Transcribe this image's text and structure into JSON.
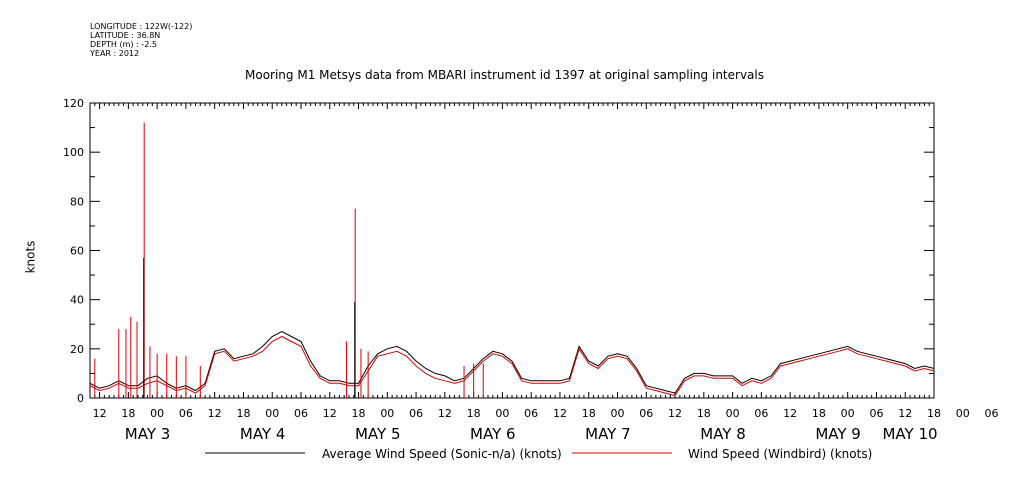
{
  "header": {
    "longitude": "LONGITUDE : 122W(-122)",
    "latitude": "LATITUDE : 36.8N",
    "depth": "DEPTH (m) : -2.5",
    "year": "YEAR : 2012"
  },
  "chart_data": {
    "type": "line",
    "title": "Mooring M1 Metsys data from MBARI instrument id 1397 at original sampling intervals",
    "ylabel": "knots",
    "xlabel": "",
    "ylim": [
      0,
      120
    ],
    "yticks": [
      0,
      20,
      40,
      60,
      80,
      100,
      120
    ],
    "xlim_hours": [
      10,
      186
    ],
    "hour_ticks": [
      "12",
      "18",
      "00",
      "06",
      "12",
      "18",
      "00",
      "06",
      "12",
      "18",
      "00",
      "06",
      "12",
      "18",
      "00",
      "06",
      "12",
      "18",
      "00",
      "06",
      "12",
      "18",
      "00",
      "06",
      "12",
      "18",
      "00",
      "06",
      "12",
      "18",
      "00",
      "06"
    ],
    "day_labels": [
      "MAY 3",
      "MAY 4",
      "MAY 5",
      "MAY 6",
      "MAY 7",
      "MAY 8",
      "MAY 9",
      "MAY 10"
    ],
    "grid": false,
    "legend_position": "bottom",
    "colors": {
      "average": "#000000",
      "windbird": "#dd0000"
    },
    "series": [
      {
        "name": "Average Wind Speed (Sonic-n/a) (knots)",
        "color": "#000000",
        "x": [
          10,
          12,
          14,
          16,
          18,
          20,
          22,
          24,
          26,
          28,
          30,
          32,
          34,
          36,
          38,
          40,
          42,
          44,
          46,
          48,
          50,
          52,
          54,
          56,
          58,
          60,
          62,
          64,
          66,
          68,
          70,
          72,
          74,
          76,
          78,
          80,
          82,
          84,
          86,
          88,
          90,
          92,
          94,
          96,
          98,
          100,
          102,
          104,
          106,
          108,
          110,
          112,
          114,
          116,
          118,
          120,
          122,
          124,
          126,
          128,
          130,
          132,
          134,
          136,
          138,
          140,
          142,
          144,
          146,
          148,
          150,
          152,
          154,
          156,
          158,
          160,
          162,
          164,
          166,
          168,
          170,
          172,
          174,
          176,
          178,
          180,
          182,
          184,
          186
        ],
        "y": [
          6,
          4,
          5,
          7,
          5,
          5,
          8,
          9,
          6,
          4,
          5,
          3,
          6,
          19,
          20,
          16,
          17,
          18,
          21,
          25,
          27,
          25,
          23,
          15,
          9,
          7,
          7,
          6,
          6,
          13,
          18,
          20,
          21,
          19,
          15,
          12,
          10,
          9,
          7,
          8,
          12,
          16,
          19,
          18,
          15,
          8,
          7,
          7,
          7,
          7,
          8,
          21,
          15,
          13,
          17,
          18,
          17,
          12,
          5,
          4,
          3,
          2,
          8,
          10,
          10,
          9,
          9,
          9,
          6,
          8,
          7,
          9,
          14,
          15,
          16,
          17,
          18,
          19,
          20,
          21,
          19,
          18,
          17,
          16,
          15,
          14,
          12,
          13,
          12
        ]
      },
      {
        "name": "Wind Speed (Windbird) (knots)",
        "color": "#dd0000",
        "x": [
          10,
          12,
          14,
          16,
          18,
          20,
          22,
          24,
          26,
          28,
          30,
          32,
          34,
          36,
          38,
          40,
          42,
          44,
          46,
          48,
          50,
          52,
          54,
          56,
          58,
          60,
          62,
          64,
          66,
          68,
          70,
          72,
          74,
          76,
          78,
          80,
          82,
          84,
          86,
          88,
          90,
          92,
          94,
          96,
          98,
          100,
          102,
          104,
          106,
          108,
          110,
          112,
          114,
          116,
          118,
          120,
          122,
          124,
          126,
          128,
          130,
          132,
          134,
          136,
          138,
          140,
          142,
          144,
          146,
          148,
          150,
          152,
          154,
          156,
          158,
          160,
          162,
          164,
          166,
          168,
          170,
          172,
          174,
          176,
          178,
          180,
          182,
          184,
          186
        ],
        "y": [
          5,
          3,
          4,
          6,
          4,
          4,
          6,
          7,
          5,
          3,
          4,
          2,
          5,
          18,
          19,
          15,
          16,
          17,
          19,
          23,
          25,
          23,
          21,
          13,
          8,
          6,
          6,
          5,
          5,
          11,
          17,
          18,
          19,
          17,
          13,
          10,
          8,
          7,
          6,
          7,
          11,
          15,
          18,
          17,
          14,
          7,
          6,
          6,
          6,
          6,
          7,
          20,
          14,
          12,
          16,
          17,
          16,
          11,
          4,
          3,
          2,
          1,
          7,
          9,
          9,
          8,
          8,
          8,
          5,
          7,
          6,
          8,
          13,
          14,
          15,
          16,
          17,
          18,
          19,
          20,
          18,
          17,
          16,
          15,
          14,
          13,
          11,
          12,
          11
        ]
      }
    ],
    "spikes": [
      {
        "series": "Wind Speed (Windbird) (knots)",
        "x": 21.3,
        "y": 112
      },
      {
        "series": "Average Wind Speed (Sonic-n/a) (knots)",
        "x": 21.2,
        "y": 57
      },
      {
        "series": "Wind Speed (Windbird) (knots)",
        "x": 65.3,
        "y": 77
      },
      {
        "series": "Average Wind Speed (Sonic-n/a) (knots)",
        "x": 65.2,
        "y": 39
      },
      {
        "series": "Wind Speed (Windbird) (knots)",
        "x": 18.5,
        "y": 33
      },
      {
        "series": "Wind Speed (Windbird) (knots)",
        "x": 17.5,
        "y": 28
      },
      {
        "series": "Wind Speed (Windbird) (knots)",
        "x": 16.0,
        "y": 28
      },
      {
        "series": "Wind Speed (Windbird) (knots)",
        "x": 19.8,
        "y": 31
      },
      {
        "series": "Wind Speed (Windbird) (knots)",
        "x": 11.0,
        "y": 16
      },
      {
        "series": "Wind Speed (Windbird) (knots)",
        "x": 22.5,
        "y": 21
      },
      {
        "series": "Wind Speed (Windbird) (knots)",
        "x": 24.0,
        "y": 18
      },
      {
        "series": "Wind Speed (Windbird) (knots)",
        "x": 26.0,
        "y": 18
      },
      {
        "series": "Wind Speed (Windbird) (knots)",
        "x": 28.0,
        "y": 17
      },
      {
        "series": "Wind Speed (Windbird) (knots)",
        "x": 30.0,
        "y": 17
      },
      {
        "series": "Wind Speed (Windbird) (knots)",
        "x": 33.0,
        "y": 13
      },
      {
        "series": "Wind Speed (Windbird) (knots)",
        "x": 63.5,
        "y": 23
      },
      {
        "series": "Wind Speed (Windbird) (knots)",
        "x": 66.5,
        "y": 20
      },
      {
        "series": "Wind Speed (Windbird) (knots)",
        "x": 68.0,
        "y": 19
      },
      {
        "series": "Wind Speed (Windbird) (knots)",
        "x": 88.0,
        "y": 13
      },
      {
        "series": "Wind Speed (Windbird) (knots)",
        "x": 90.0,
        "y": 14
      },
      {
        "series": "Wind Speed (Windbird) (knots)",
        "x": 92.0,
        "y": 14
      }
    ]
  }
}
